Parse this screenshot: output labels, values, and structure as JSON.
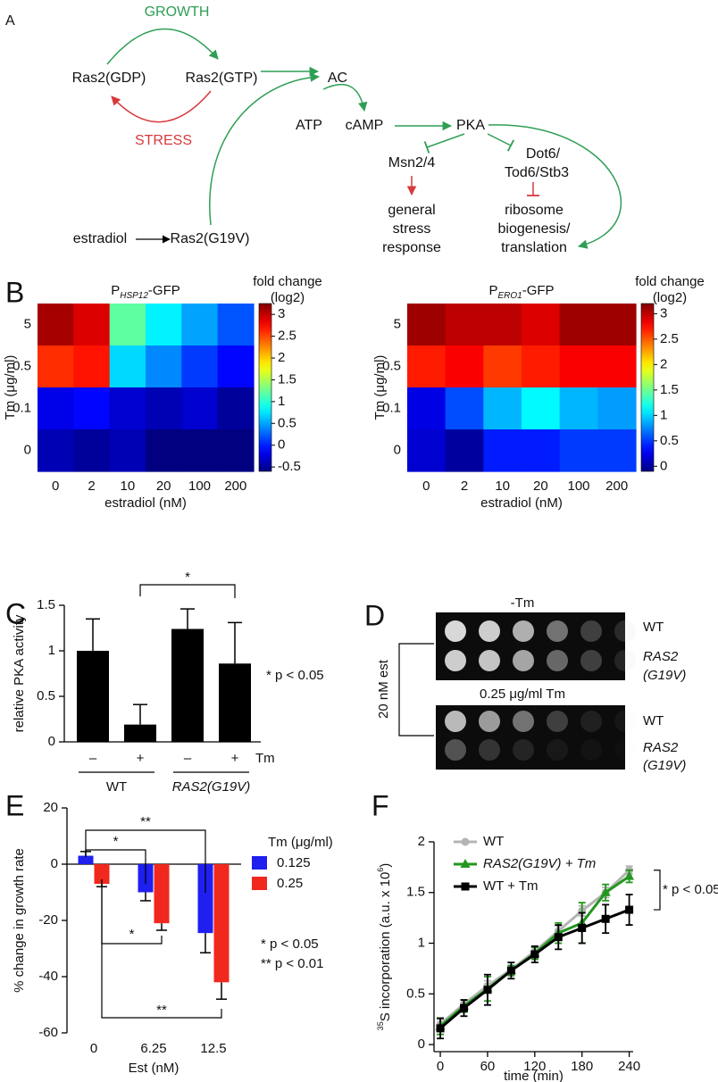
{
  "diagram": {
    "panel_label": "A",
    "growth": "GROWTH",
    "stress": "STRESS",
    "ras2_gdp": "Ras2(GDP)",
    "ras2_gtp": "Ras2(GTP)",
    "ac": "AC",
    "atp": "ATP",
    "camp": "cAMP",
    "pka": "PKA",
    "msn": "Msn2/4",
    "dot6": [
      "Dot6/",
      "Tod6/Stb3"
    ],
    "stress_response": [
      "general",
      "stress",
      "response"
    ],
    "ribosome": [
      "ribosome",
      "biogenesis/",
      "translation"
    ],
    "estradiol": "estradiol",
    "ras2_g19v": "Ras2(G19V)"
  },
  "chart_data": [
    {
      "type": "heatmap",
      "panel_label": "B",
      "title": {
        "main": "P",
        "sub": "HSP12",
        "suffix": "-GFP"
      },
      "categories": [
        "0",
        "2",
        "10",
        "20",
        "100",
        "200"
      ],
      "rows": [
        "5",
        "0.5",
        "0.1",
        "0"
      ],
      "values": [
        [
          3.1,
          2.9,
          1.2,
          0.8,
          0.5,
          0.2
        ],
        [
          2.6,
          2.7,
          0.7,
          0.4,
          0.1,
          -0.1
        ],
        [
          -0.2,
          -0.1,
          -0.3,
          -0.4,
          -0.3,
          -0.5
        ],
        [
          -0.4,
          -0.5,
          -0.4,
          -0.6,
          -0.6,
          -0.6
        ]
      ],
      "colormap": "jet",
      "zlim": [
        -0.6,
        3.25
      ],
      "zticks": [
        3,
        2.5,
        2,
        1.5,
        1,
        0.5,
        0,
        -0.5
      ],
      "colorbar_label": [
        "fold change",
        "(log2)"
      ],
      "xlabel": "estradiol (nM)",
      "ylabel": "Tm (μg/ml)"
    },
    {
      "type": "heatmap",
      "title": {
        "main": "P",
        "sub": "ERO1",
        "suffix": "-GFP"
      },
      "categories": [
        "0",
        "2",
        "10",
        "20",
        "100",
        "200"
      ],
      "rows": [
        "5",
        "0.5",
        "0.1",
        "0"
      ],
      "values": [
        [
          3.1,
          3.0,
          3.0,
          2.9,
          3.1,
          3.1
        ],
        [
          2.7,
          2.8,
          2.6,
          2.7,
          2.8,
          2.8
        ],
        [
          0.23,
          0.56,
          0.9,
          1.12,
          0.9,
          0.82
        ],
        [
          0.16,
          0.0,
          0.4,
          0.4,
          0.5,
          0.5
        ]
      ],
      "colormap": "jet",
      "zlim": [
        -0.1,
        3.2
      ],
      "zticks": [
        3,
        2.5,
        2,
        1.5,
        1,
        0.5,
        0
      ],
      "colorbar_label": [
        "fold change",
        "(log2)"
      ],
      "xlabel": "estradiol (nM)",
      "ylabel": "Tm (μg/ml)"
    },
    {
      "type": "bar",
      "panel_label": "C",
      "categories": [
        "–",
        "+",
        "–",
        "+"
      ],
      "values": [
        1.0,
        0.19,
        1.24,
        0.86
      ],
      "errors": [
        0.35,
        0.22,
        0.22,
        0.45
      ],
      "color": "#000000",
      "ylim": [
        0,
        1.5
      ],
      "yticks": [
        0,
        0.5,
        1,
        1.5
      ],
      "ylabel": "relative PKA activity",
      "xlabel": "Tm",
      "groups": [
        "WT",
        "RAS2(G19V)"
      ],
      "significance": [
        "*"
      ],
      "note": "* p < 0.05"
    },
    {
      "type": "grouped_bar",
      "panel_label": "E",
      "categories": [
        "0",
        "6.25",
        "12.5"
      ],
      "series": [
        {
          "name": "0.125",
          "color": "#1f1ff0",
          "values": [
            3,
            -10,
            -24.5
          ],
          "errors": [
            1.5,
            3,
            7
          ]
        },
        {
          "name": "0.25",
          "color": "#f0281e",
          "values": [
            -7,
            -21,
            -42
          ],
          "errors": [
            1,
            2.5,
            6
          ]
        }
      ],
      "legend_title": "Tm (μg/ml)",
      "ylim": [
        -60,
        20
      ],
      "yticks": [
        -60,
        -40,
        -20,
        0,
        20
      ],
      "ylabel": "% change in growth rate",
      "xlabel": "Est (nM)",
      "significance": [
        "*",
        "**",
        "*",
        "**"
      ],
      "notes": [
        "* p < 0.05",
        "** p < 0.01"
      ]
    },
    {
      "type": "line",
      "panel_label": "F",
      "x": [
        0,
        30,
        60,
        90,
        120,
        150,
        180,
        210,
        240
      ],
      "series": [
        {
          "name": "WT",
          "color": "#b4b4b4",
          "marker": "circle",
          "values": [
            0.2,
            0.4,
            0.58,
            0.74,
            0.92,
            1.12,
            1.32,
            1.5,
            1.72
          ],
          "errors": [
            0.05,
            0.04,
            0.05,
            0.04,
            0.05,
            0.05,
            0.05,
            0.05,
            0.04
          ]
        },
        {
          "name": "RAS2(G19V) + Tm",
          "color": "#23961e",
          "marker": "triangle",
          "values": [
            0.18,
            0.38,
            0.55,
            0.73,
            0.9,
            1.1,
            1.2,
            1.5,
            1.66
          ],
          "errors": [
            0.08,
            0.06,
            0.12,
            0.05,
            0.06,
            0.1,
            0.2,
            0.08,
            0.06
          ]
        },
        {
          "name": "WT + Tm",
          "color": "#000000",
          "marker": "square",
          "values": [
            0.16,
            0.36,
            0.54,
            0.73,
            0.89,
            1.06,
            1.15,
            1.24,
            1.33
          ],
          "errors": [
            0.1,
            0.08,
            0.15,
            0.08,
            0.08,
            0.12,
            0.15,
            0.14,
            0.15
          ]
        }
      ],
      "xlim": [
        -8,
        245
      ],
      "xticks": [
        0,
        60,
        120,
        180,
        240
      ],
      "ylim": [
        -0.07,
        2
      ],
      "yticks": [
        0,
        0.5,
        1,
        1.5,
        2
      ],
      "ylabel": [
        "35",
        "S incorporation (a.u. x 10",
        "6",
        ")"
      ],
      "xlabel": "time (min)",
      "note": "* p < 0.05"
    }
  ],
  "image_panel": {
    "panel_label": "D",
    "rows": [
      {
        "title": "-Tm",
        "labels": [
          "WT",
          "RAS2",
          "(G19V)"
        ]
      },
      {
        "title": "0.25 μg/ml Tm",
        "labels": [
          "WT",
          "RAS2",
          "(G19V)"
        ]
      }
    ],
    "bracket_label": "20 nM est"
  }
}
